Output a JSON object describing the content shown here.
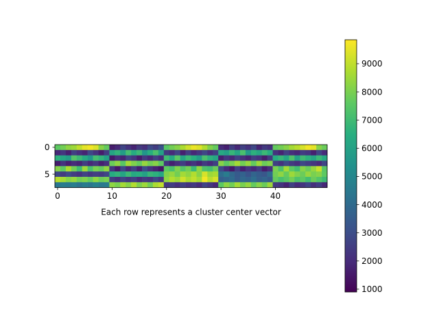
{
  "chart_data": {
    "type": "heatmap",
    "title": "",
    "xlabel": "Each row represents a cluster center vector",
    "ylabel": "",
    "xlim": [
      -0.5,
      49.5
    ],
    "ylim": [
      7.5,
      -0.5
    ],
    "xticks": [
      0,
      10,
      20,
      30,
      40
    ],
    "yticks": [
      0,
      5
    ],
    "n_rows": 8,
    "n_cols": 50,
    "colormap": "viridis",
    "colorbar": {
      "range": [
        900,
        9850
      ],
      "ticks": [
        1000,
        2000,
        3000,
        4000,
        5000,
        6000,
        7000,
        8000,
        9000
      ]
    },
    "values": [
      [
        7600,
        7900,
        8300,
        8500,
        9000,
        9500,
        9700,
        9400,
        8200,
        7700,
        1600,
        1900,
        2700,
        2200,
        1800,
        2400,
        2100,
        2900,
        2500,
        3100,
        7500,
        7900,
        8200,
        8700,
        9200,
        9600,
        9400,
        8800,
        8100,
        7700,
        2000,
        1700,
        2500,
        1900,
        2600,
        2200,
        2800,
        1800,
        2400,
        2100,
        7700,
        7900,
        8200,
        8600,
        8900,
        9300,
        9700,
        9500,
        8200,
        7800
      ],
      [
        1900,
        2300,
        1700,
        2600,
        2100,
        1800,
        2800,
        2200,
        1600,
        2500,
        6100,
        6700,
        5800,
        7100,
        6400,
        6900,
        5600,
        6500,
        7200,
        6000,
        2400,
        2000,
        2700,
        1700,
        2500,
        1900,
        2300,
        2800,
        2100,
        2600,
        6300,
        5900,
        6800,
        6100,
        7200,
        5700,
        6600,
        6200,
        6900,
        6400,
        2200,
        1800,
        2600,
        2100,
        1900,
        2500,
        2300,
        1700,
        2700,
        2000
      ],
      [
        6600,
        6200,
        5800,
        7400,
        6900,
        6300,
        5600,
        7100,
        6700,
        6000,
        1500,
        2100,
        1800,
        2700,
        2300,
        1600,
        2400,
        1900,
        2600,
        2000,
        7000,
        6300,
        7500,
        6100,
        6900,
        6500,
        5800,
        7200,
        6600,
        6200,
        1700,
        2300,
        1900,
        2600,
        2100,
        1800,
        2500,
        2200,
        1600,
        2400,
        6400,
        6800,
        6200,
        7300,
        6000,
        7000,
        6600,
        6100,
        6900,
        6300
      ],
      [
        1600,
        2200,
        1700,
        2000,
        1800,
        2500,
        1900,
        2300,
        1700,
        2100,
        7800,
        8300,
        7500,
        8600,
        8100,
        7700,
        8400,
        7900,
        8200,
        7600,
        2300,
        1700,
        2100,
        2500,
        1900,
        2200,
        1800,
        2400,
        2000,
        2600,
        8200,
        7600,
        8000,
        8600,
        7900,
        8400,
        7700,
        8500,
        7800,
        8100,
        2600,
        2200,
        2900,
        2400,
        2100,
        2800,
        2500,
        2300,
        2000,
        2700
      ],
      [
        8200,
        7600,
        8700,
        7900,
        7000,
        8500,
        7200,
        8000,
        7700,
        8300,
        2300,
        1500,
        2800,
        1900,
        2600,
        1700,
        3000,
        2200,
        1800,
        1400,
        7600,
        7200,
        8100,
        7400,
        7900,
        6900,
        8300,
        7300,
        7100,
        7800,
        2900,
        2000,
        1500,
        2600,
        1700,
        2300,
        1900,
        2500,
        1600,
        2100,
        8000,
        7300,
        8600,
        7600,
        7100,
        8200,
        7800,
        8400,
        9100,
        7500
      ],
      [
        2800,
        2400,
        2900,
        2500,
        2200,
        2700,
        2300,
        2600,
        2400,
        2800,
        6400,
        6700,
        6100,
        6900,
        6300,
        6500,
        6000,
        6800,
        6600,
        6200,
        8100,
        8400,
        7900,
        8600,
        8300,
        8800,
        8200,
        9300,
        8500,
        8700,
        4100,
        4600,
        3900,
        3400,
        3700,
        3200,
        3800,
        3500,
        3300,
        4000,
        7900,
        8300,
        7700,
        8500,
        8100,
        7800,
        8400,
        8000,
        8200,
        7600
      ],
      [
        8900,
        8600,
        8200,
        8400,
        7900,
        8100,
        7700,
        8300,
        7800,
        8000,
        2500,
        2100,
        2700,
        2300,
        2600,
        2000,
        2400,
        2200,
        2800,
        2300,
        8300,
        8800,
        8500,
        9200,
        8700,
        9000,
        8600,
        9700,
        8900,
        9300,
        3600,
        3800,
        4000,
        3500,
        3900,
        3700,
        4100,
        3600,
        3800,
        3400,
        7700,
        7200,
        7500,
        7900,
        7300,
        7600,
        7100,
        7800,
        7400,
        7000
      ],
      [
        4400,
        4600,
        4500,
        4700,
        4300,
        4600,
        4400,
        4800,
        4500,
        4600,
        8300,
        8000,
        8600,
        8200,
        8800,
        8100,
        8500,
        7900,
        8700,
        9000,
        2300,
        2500,
        2100,
        2600,
        2200,
        2400,
        2000,
        2700,
        2300,
        1900,
        7600,
        8300,
        7900,
        8600,
        8000,
        8400,
        7700,
        8200,
        7800,
        8500,
        2400,
        2200,
        1800,
        2600,
        2000,
        2300,
        2700,
        2100,
        2500,
        1900
      ]
    ]
  }
}
